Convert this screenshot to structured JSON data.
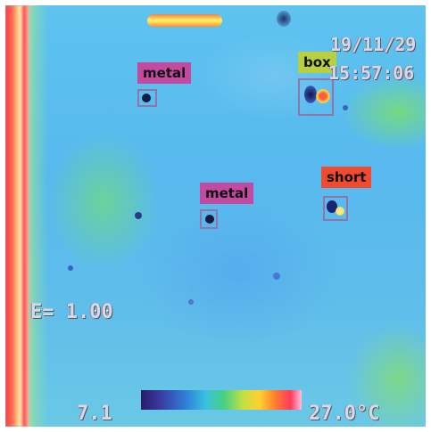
{
  "overlay": {
    "date": "19/11/29",
    "time": "15:57:06",
    "emissivity": "E= 1.00",
    "scale_min": "7.1",
    "scale_max": "27.0°C"
  },
  "detections": [
    {
      "label": "metal",
      "color": "#c24aa0"
    },
    {
      "label": "box",
      "color": "#b8d040"
    },
    {
      "label": "metal",
      "color": "#c24aa0"
    },
    {
      "label": "short",
      "color": "#f04a30"
    }
  ]
}
